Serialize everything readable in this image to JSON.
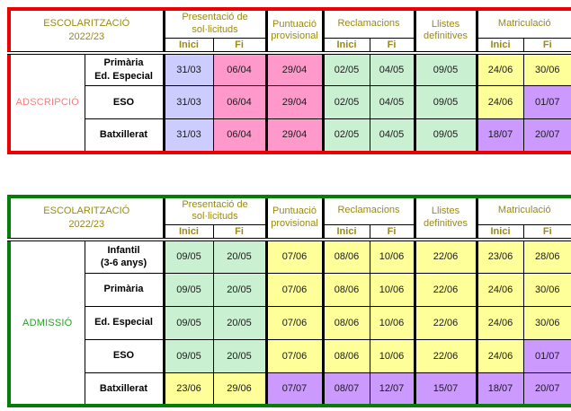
{
  "shared": {
    "title": "ESCOLARITZACIÓ\n2022/23",
    "header_text_color": "#9a8a12",
    "col_groups": [
      {
        "label": "Presentació de\nsol·licituds",
        "sub": [
          "Inici",
          "Fi"
        ]
      },
      {
        "label": "Puntuació\nprovisional",
        "sub": null
      },
      {
        "label": "Reclamacions",
        "sub": [
          "Inici",
          "Fi"
        ]
      },
      {
        "label": "Llistes\ndefinitives",
        "sub": null
      },
      {
        "label": "Matriculació",
        "sub": [
          "Inici",
          "Fi"
        ]
      }
    ]
  },
  "palette": {
    "lavender": "#ccccff",
    "rose": "#ff99cc",
    "green": "#c9f0d1",
    "yellow": "#ffff99",
    "purple": "#cc99ff"
  },
  "tables": [
    {
      "category": "ADSCRIPCIÓ",
      "category_color": "#f08080",
      "border_color": "#ee0000",
      "rows": [
        {
          "level": "Primària\nEd. Especial",
          "cells": [
            {
              "v": "31/03",
              "c": "lavender"
            },
            {
              "v": "06/04",
              "c": "rose"
            },
            {
              "v": "29/04",
              "c": "rose"
            },
            {
              "v": "02/05",
              "c": "green"
            },
            {
              "v": "04/05",
              "c": "green"
            },
            {
              "v": "09/05",
              "c": "green"
            },
            {
              "v": "24/06",
              "c": "yellow"
            },
            {
              "v": "30/06",
              "c": "yellow"
            }
          ]
        },
        {
          "level": "ESO",
          "cells": [
            {
              "v": "31/03",
              "c": "lavender"
            },
            {
              "v": "06/04",
              "c": "rose"
            },
            {
              "v": "29/04",
              "c": "rose"
            },
            {
              "v": "02/05",
              "c": "green"
            },
            {
              "v": "04/05",
              "c": "green"
            },
            {
              "v": "09/05",
              "c": "green"
            },
            {
              "v": "24/06",
              "c": "yellow"
            },
            {
              "v": "01/07",
              "c": "purple"
            }
          ]
        },
        {
          "level": "Batxillerat",
          "cells": [
            {
              "v": "31/03",
              "c": "lavender"
            },
            {
              "v": "06/04",
              "c": "rose"
            },
            {
              "v": "29/04",
              "c": "rose"
            },
            {
              "v": "02/05",
              "c": "green"
            },
            {
              "v": "04/05",
              "c": "green"
            },
            {
              "v": "09/05",
              "c": "green"
            },
            {
              "v": "18/07",
              "c": "purple"
            },
            {
              "v": "20/07",
              "c": "purple"
            }
          ]
        }
      ]
    },
    {
      "category": "ADMISSIÓ",
      "category_color": "#28a228",
      "border_color": "#067d06",
      "rows": [
        {
          "level": "Infantil\n(3-6 anys)",
          "cells": [
            {
              "v": "09/05",
              "c": "green"
            },
            {
              "v": "20/05",
              "c": "green"
            },
            {
              "v": "07/06",
              "c": "yellow"
            },
            {
              "v": "08/06",
              "c": "yellow"
            },
            {
              "v": "10/06",
              "c": "yellow"
            },
            {
              "v": "22/06",
              "c": "yellow"
            },
            {
              "v": "23/06",
              "c": "yellow"
            },
            {
              "v": "28/06",
              "c": "yellow"
            }
          ]
        },
        {
          "level": "Primària",
          "cells": [
            {
              "v": "09/05",
              "c": "green"
            },
            {
              "v": "20/05",
              "c": "green"
            },
            {
              "v": "07/06",
              "c": "yellow"
            },
            {
              "v": "08/06",
              "c": "yellow"
            },
            {
              "v": "10/06",
              "c": "yellow"
            },
            {
              "v": "22/06",
              "c": "yellow"
            },
            {
              "v": "24/06",
              "c": "yellow"
            },
            {
              "v": "30/06",
              "c": "yellow"
            }
          ]
        },
        {
          "level": "Ed. Especial",
          "cells": [
            {
              "v": "09/05",
              "c": "green"
            },
            {
              "v": "20/05",
              "c": "green"
            },
            {
              "v": "07/06",
              "c": "yellow"
            },
            {
              "v": "08/06",
              "c": "yellow"
            },
            {
              "v": "10/06",
              "c": "yellow"
            },
            {
              "v": "22/06",
              "c": "yellow"
            },
            {
              "v": "24/06",
              "c": "yellow"
            },
            {
              "v": "30/06",
              "c": "yellow"
            }
          ]
        },
        {
          "level": "ESO",
          "cells": [
            {
              "v": "09/05",
              "c": "green"
            },
            {
              "v": "20/05",
              "c": "green"
            },
            {
              "v": "07/06",
              "c": "yellow"
            },
            {
              "v": "08/06",
              "c": "yellow"
            },
            {
              "v": "10/06",
              "c": "yellow"
            },
            {
              "v": "22/06",
              "c": "yellow"
            },
            {
              "v": "24/06",
              "c": "yellow"
            },
            {
              "v": "01/07",
              "c": "purple"
            }
          ]
        },
        {
          "level": "Batxillerat",
          "cells": [
            {
              "v": "23/06",
              "c": "yellow"
            },
            {
              "v": "29/06",
              "c": "yellow"
            },
            {
              "v": "07/07",
              "c": "purple"
            },
            {
              "v": "08/07",
              "c": "purple"
            },
            {
              "v": "12/07",
              "c": "purple"
            },
            {
              "v": "15/07",
              "c": "purple"
            },
            {
              "v": "18/07",
              "c": "purple"
            },
            {
              "v": "20/07",
              "c": "purple"
            }
          ]
        }
      ]
    }
  ]
}
